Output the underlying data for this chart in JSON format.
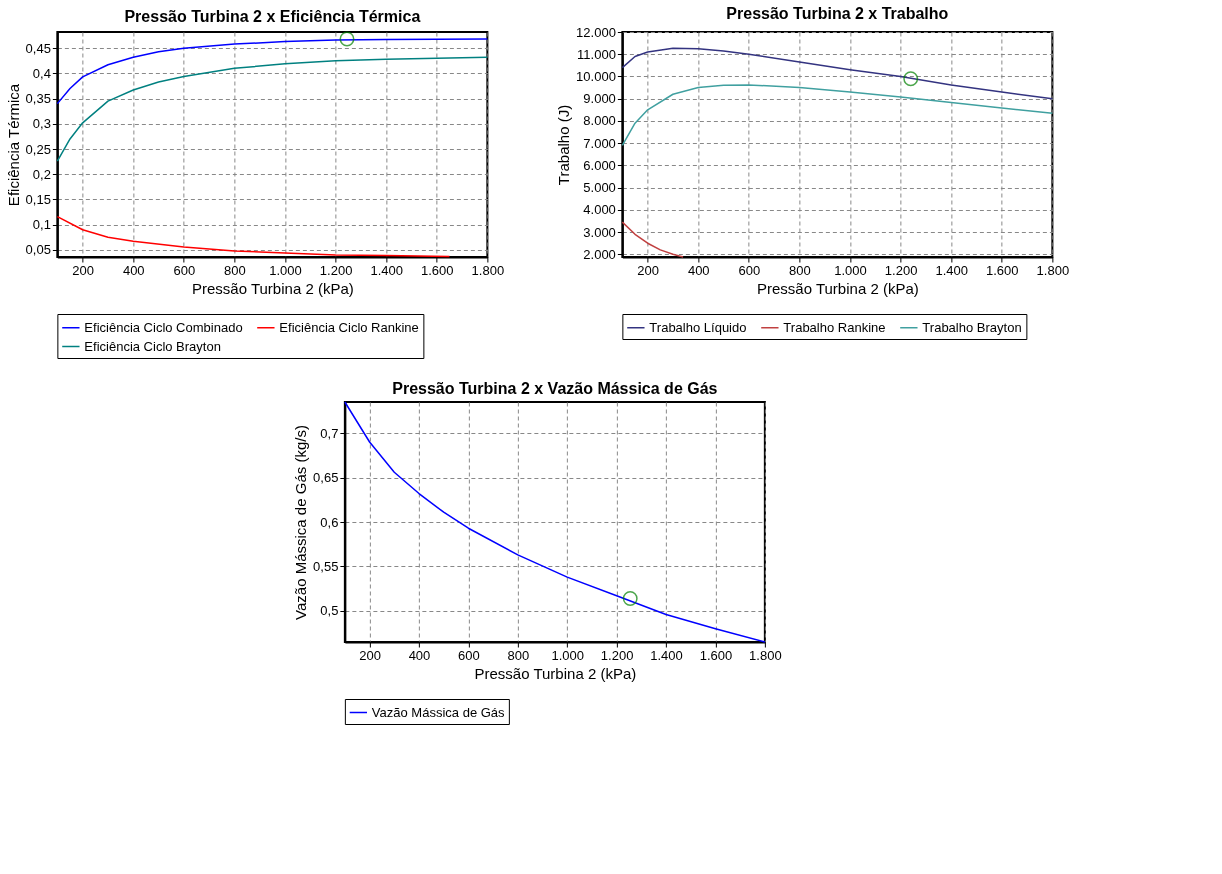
{
  "chart_data": [
    {
      "type": "line",
      "title": "Pressão Turbina 2 x Eficiência Térmica",
      "xlabel": "Pressão Turbina 2 (kPa)",
      "ylabel": "Eficiência Térmica",
      "xlim": [
        100,
        1800
      ],
      "xticks": [
        200,
        400,
        600,
        800,
        {
          "value": 1000,
          "label": "1.000"
        },
        {
          "value": 1200,
          "label": "1.200"
        },
        {
          "value": 1400,
          "label": "1.400"
        },
        {
          "value": 1600,
          "label": "1.600"
        },
        {
          "value": 1800,
          "label": "1.800"
        }
      ],
      "ylim": [
        0.036,
        0.482
      ],
      "yticks": [
        {
          "value": 0.05,
          "label": "0,05"
        },
        {
          "value": 0.1,
          "label": "0,1"
        },
        {
          "value": 0.15,
          "label": "0,15"
        },
        {
          "value": 0.2,
          "label": "0,2"
        },
        {
          "value": 0.25,
          "label": "0,25"
        },
        {
          "value": 0.3,
          "label": "0,3"
        },
        {
          "value": 0.35,
          "label": "0,35"
        },
        {
          "value": 0.4,
          "label": "0,4"
        },
        {
          "value": 0.45,
          "label": "0,45"
        }
      ],
      "grid": true,
      "legend": "bottom",
      "series": [
        {
          "name": "Eficiência Ciclo Combinado",
          "color": "#0000ff",
          "x": [
            100,
            150,
            200,
            300,
            400,
            500,
            600,
            800,
            1000,
            1200,
            1400,
            1800
          ],
          "values": [
            0.34,
            0.37,
            0.393,
            0.417,
            0.432,
            0.443,
            0.45,
            0.458,
            0.463,
            0.466,
            0.467,
            0.468
          ]
        },
        {
          "name": "Eficiência Ciclo Rankine",
          "color": "#ff0000",
          "x": [
            100,
            200,
            300,
            400,
            600,
            800,
            1000,
            1200,
            1400,
            1650
          ],
          "values": [
            0.116,
            0.09,
            0.075,
            0.067,
            0.056,
            0.048,
            0.044,
            0.04,
            0.039,
            0.037
          ]
        },
        {
          "name": "Eficiência Ciclo Brayton",
          "color": "#008080",
          "x": [
            100,
            150,
            200,
            300,
            400,
            500,
            600,
            800,
            1000,
            1200,
            1400,
            1800
          ],
          "values": [
            0.226,
            0.27,
            0.302,
            0.345,
            0.367,
            0.383,
            0.394,
            0.41,
            0.419,
            0.425,
            0.428,
            0.432
          ]
        },
        {
          "type": "scatter",
          "color": "#008000",
          "x": [
            1245
          ],
          "values": [
            0.468
          ]
        }
      ]
    },
    {
      "type": "line",
      "title": "Pressão Turbina 2 x Trabalho",
      "xlabel": "Pressão Turbina 2 (kPa)",
      "ylabel": "Trabalho (J)",
      "xlim": [
        100,
        1800
      ],
      "xticks": [
        200,
        400,
        600,
        800,
        {
          "value": 1000,
          "label": "1.000"
        },
        {
          "value": 1200,
          "label": "1.200"
        },
        {
          "value": 1400,
          "label": "1.400"
        },
        {
          "value": 1600,
          "label": "1.600"
        },
        {
          "value": 1800,
          "label": "1.800"
        }
      ],
      "ylim": [
        1880,
        12000
      ],
      "yticks": [
        {
          "value": 2000,
          "label": "2.000"
        },
        {
          "value": 3000,
          "label": "3.000"
        },
        {
          "value": 4000,
          "label": "4.000"
        },
        {
          "value": 5000,
          "label": "5.000"
        },
        {
          "value": 6000,
          "label": "6.000"
        },
        {
          "value": 7000,
          "label": "7.000"
        },
        {
          "value": 8000,
          "label": "8.000"
        },
        {
          "value": 9000,
          "label": "9.000"
        },
        {
          "value": 10000,
          "label": "10.000"
        },
        {
          "value": 11000,
          "label": "11.000"
        },
        {
          "value": 12000,
          "label": "12.000"
        }
      ],
      "grid": true,
      "legend": "bottom",
      "series": [
        {
          "name": "Trabalho Líquido",
          "color": "#333380",
          "x": [
            100,
            150,
            200,
            300,
            400,
            500,
            600,
            800,
            1000,
            1200,
            1400,
            1600,
            1800
          ],
          "values": [
            10400,
            10900,
            11100,
            11270,
            11250,
            11150,
            11000,
            10650,
            10300,
            10000,
            9620,
            9300,
            9000
          ]
        },
        {
          "name": "Trabalho Rankine",
          "color": "#c04040",
          "x": [
            100,
            150,
            200,
            250,
            300,
            340
          ],
          "values": [
            3450,
            2900,
            2500,
            2200,
            2000,
            1880
          ]
        },
        {
          "name": "Trabalho Brayton",
          "color": "#40a0a0",
          "x": [
            100,
            150,
            200,
            300,
            400,
            500,
            600,
            800,
            1000,
            1200,
            1400,
            1600,
            1800
          ],
          "values": [
            6900,
            7900,
            8500,
            9200,
            9500,
            9600,
            9620,
            9500,
            9300,
            9080,
            8830,
            8580,
            8350
          ]
        },
        {
          "type": "scatter",
          "color": "#008000",
          "x": [
            1240
          ],
          "values": [
            9900
          ]
        }
      ]
    },
    {
      "type": "line",
      "title": "Pressão Turbina 2 x Vazão Mássica de Gás",
      "xlabel": "Pressão Turbina 2 (kPa)",
      "ylabel": "Vazão Mássica de Gás (kg/s)",
      "xlim": [
        100,
        1800
      ],
      "xticks": [
        200,
        400,
        600,
        800,
        {
          "value": 1000,
          "label": "1.000"
        },
        {
          "value": 1200,
          "label": "1.200"
        },
        {
          "value": 1400,
          "label": "1.400"
        },
        {
          "value": 1600,
          "label": "1.600"
        },
        {
          "value": 1800,
          "label": "1.800"
        }
      ],
      "ylim": [
        0.465,
        0.735
      ],
      "yticks": [
        {
          "value": 0.5,
          "label": "0,5"
        },
        {
          "value": 0.55,
          "label": "0,55"
        },
        {
          "value": 0.6,
          "label": "0,6"
        },
        {
          "value": 0.65,
          "label": "0,65"
        },
        {
          "value": 0.7,
          "label": "0,7"
        }
      ],
      "grid": true,
      "legend": "bottom",
      "series": [
        {
          "name": "Vazão Mássica de Gás",
          "color": "#0000ff",
          "x": [
            100,
            200,
            300,
            400,
            500,
            600,
            800,
            1000,
            1200,
            1400,
            1600,
            1800
          ],
          "values": [
            0.735,
            0.69,
            0.656,
            0.632,
            0.611,
            0.593,
            0.563,
            0.538,
            0.517,
            0.496,
            0.48,
            0.465
          ]
        },
        {
          "type": "scatter",
          "color": "#008000",
          "x": [
            1255
          ],
          "values": [
            0.514
          ]
        }
      ]
    }
  ]
}
